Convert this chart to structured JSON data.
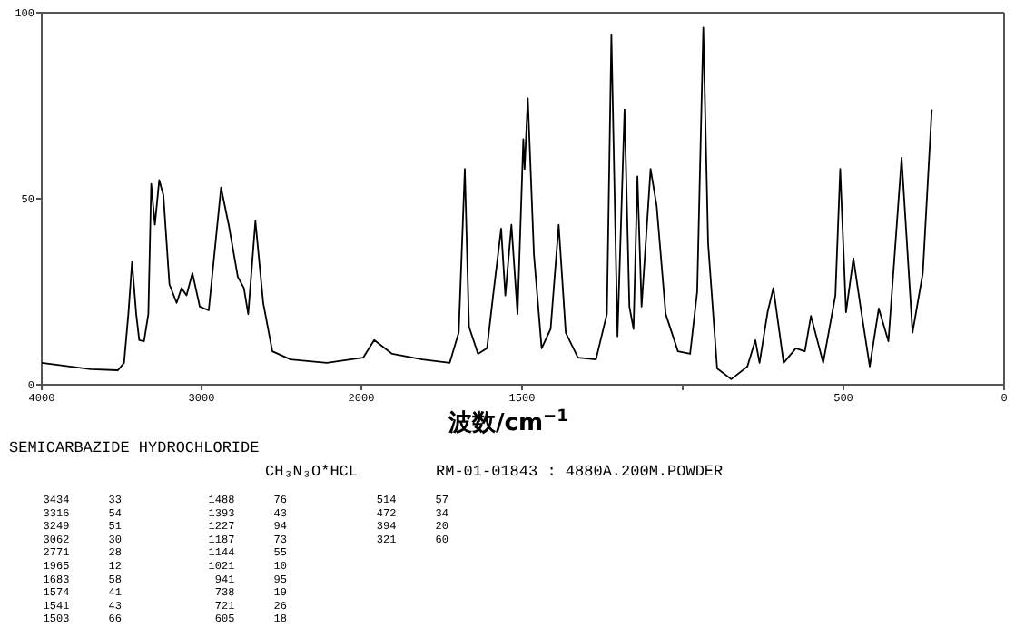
{
  "chart_data": [
    {
      "type": "line",
      "title": "SEMICARBAZIDE HYDROCHLORIDE",
      "subtitle": "CH₃N₃O*HCL",
      "xlim": [
        4000,
        2000
      ],
      "xticks": [
        4000,
        3000,
        {
          "value": 2000,
          "label": null
        }
      ],
      "ylim": [
        0,
        100
      ],
      "yticks": [
        0,
        50,
        100
      ],
      "series": [
        {
          "color": "#000000",
          "x": [
            4000,
            3693,
            3523,
            3485,
            3458,
            3435,
            3409,
            3390,
            3360,
            3333,
            3315,
            3292,
            3265,
            3239,
            3201,
            3156,
            3125,
            3094,
            3057,
            3011,
            2955,
            2878,
            2830,
            2773,
            2735,
            2708,
            2663,
            2614,
            2557,
            2443,
            2216,
            2000
          ],
          "values": [
            5.9,
            4.2,
            3.9,
            5.9,
            19,
            33,
            19,
            12,
            11.7,
            19,
            54,
            43,
            55,
            51,
            27,
            22,
            26,
            24,
            30,
            21,
            20,
            53,
            43,
            29,
            26,
            19,
            44,
            22,
            9,
            6.8,
            5.9,
            7.2
          ]
        }
      ],
      "annotations": [
        "3434      33",
        "3316      54",
        "3249      51",
        "3062      30",
        "2771      28",
        "1965      12",
        "1683      58",
        "1574      41",
        "1541      43",
        "1503      66",
        "1488      76",
        "1393      43",
        "1227      94",
        "1187      73",
        "1144      55",
        "1021      10",
        "941      95",
        "738      19",
        "721      26",
        "605      18",
        "514      57",
        "472      34",
        "394      20",
        "321      60"
      ]
    },
    {
      "type": "line",
      "subtitle": "RM-01-01843 : 4880A.200M.POWDER",
      "xlabel": "波数/cm$^{−1}$",
      "xlim": [
        2000,
        0
      ],
      "xticks": [
        2000,
        1500,
        {
          "value": 1000,
          "label": null
        },
        500,
        0
      ],
      "ylim": [
        0,
        100
      ],
      "tick_labels": "x",
      "series": [
        {
          "color": "#000000",
          "x": [
            2000,
            1994,
            1960,
            1904,
            1810,
            1725,
            1697,
            1678,
            1665,
            1637,
            1609,
            1590,
            1565,
            1552,
            1533,
            1514,
            1496,
            1492,
            1482,
            1463,
            1439,
            1411,
            1386,
            1364,
            1326,
            1270,
            1236,
            1222,
            1203,
            1181,
            1166,
            1153,
            1141,
            1128,
            1100,
            1081,
            1053,
            1015,
            977,
            955,
            936,
            921,
            893,
            849,
            799,
            774,
            761,
            736,
            718,
            686,
            648,
            620,
            601,
            563,
            525,
            510,
            492,
            469,
            446,
            418,
            390,
            360,
            319,
            285,
            253,
            225
          ],
          "values": [
            7.2,
            7.3,
            12,
            8.3,
            6.8,
            5.9,
            14,
            58,
            15.6,
            8.3,
            9.8,
            24,
            42,
            24,
            43,
            19,
            66,
            58,
            77,
            35,
            9.8,
            15,
            43,
            14,
            7.3,
            6.8,
            19,
            94,
            13,
            74,
            21,
            15,
            56,
            21,
            58,
            48,
            19,
            9,
            8.3,
            25,
            96,
            38,
            4.4,
            1.5,
            4.9,
            12,
            5.9,
            19.5,
            26,
            5.9,
            9.8,
            9,
            18.5,
            5.9,
            24,
            58,
            19.5,
            34,
            20.5,
            4.9,
            20.5,
            11.7,
            61,
            14,
            30,
            74
          ]
        }
      ]
    }
  ]
}
